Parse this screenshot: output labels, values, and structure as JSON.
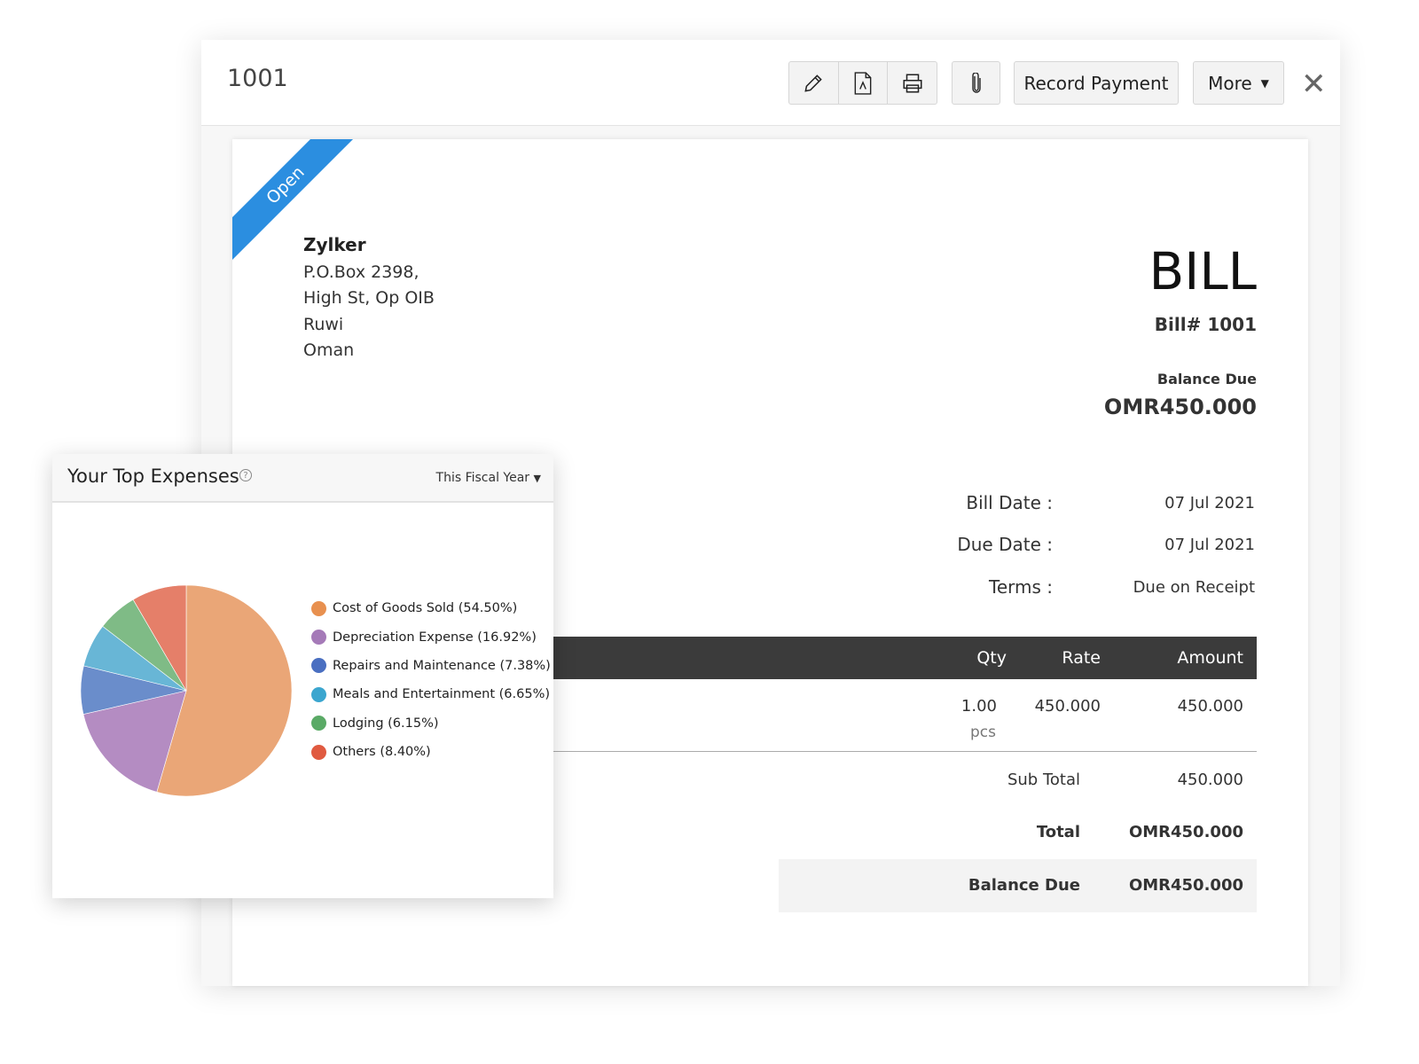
{
  "header": {
    "title": "1001",
    "record_payment": "Record Payment",
    "more": "More",
    "icons": [
      "pencil-icon",
      "pdf-icon",
      "print-icon",
      "paperclip-icon",
      "close-icon"
    ]
  },
  "bill": {
    "status": "Open",
    "status_color": "#2b8ee0",
    "vendor": "Zylker",
    "address": [
      "P.O.Box 2398,",
      "High St, Op OIB",
      "Ruwi",
      "Oman"
    ],
    "heading": "BILL",
    "number": "Bill# 1001",
    "balance_due_label": "Balance Due",
    "balance_due": "OMR450.000",
    "bill_date_label": "Bill Date :",
    "bill_date": "07 Jul 2021",
    "due_date_label": "Due Date :",
    "due_date": "07 Jul 2021",
    "terms_label": "Terms :",
    "terms": "Due on Receipt",
    "columns": {
      "qty": "Qty",
      "rate": "Rate",
      "amount": "Amount"
    },
    "item": {
      "qty": "1.00",
      "unit": "pcs",
      "rate": "450.000",
      "amount": "450.000"
    },
    "sub_total_label": "Sub Total",
    "sub_total": "450.000",
    "total_label": "Total",
    "total": "OMR450.000",
    "balance_label": "Balance Due",
    "balance": "OMR450.000"
  },
  "widget": {
    "title": "Your Top Expenses",
    "period": "This Fiscal Year"
  },
  "chart_data": {
    "type": "pie",
    "legend_position": "right",
    "series": [
      {
        "name": "Cost of Goods Sold",
        "label": "Cost of Goods Sold (54.50%)",
        "value": 54.5,
        "color": "#eaa677",
        "dot": "#e8904f"
      },
      {
        "name": "Depreciation Expense",
        "label": "Depreciation Expense (16.92%)",
        "value": 16.92,
        "color": "#b48cc2",
        "dot": "#a57ab8"
      },
      {
        "name": "Repairs and Maintenance",
        "label": "Repairs and Maintenance (7.38%)",
        "value": 7.38,
        "color": "#6a8dcb",
        "dot": "#4a6fc1"
      },
      {
        "name": "Meals and Entertainment",
        "label": "Meals and Entertainment (6.65%)",
        "value": 6.65,
        "color": "#68b6d6",
        "dot": "#3ba6cf"
      },
      {
        "name": "Lodging",
        "label": "Lodging (6.15%)",
        "value": 6.15,
        "color": "#7fbb86",
        "dot": "#5aaa66"
      },
      {
        "name": "Others",
        "label": "Others (8.40%)",
        "value": 8.4,
        "color": "#e57f69",
        "dot": "#e05a40"
      }
    ]
  }
}
